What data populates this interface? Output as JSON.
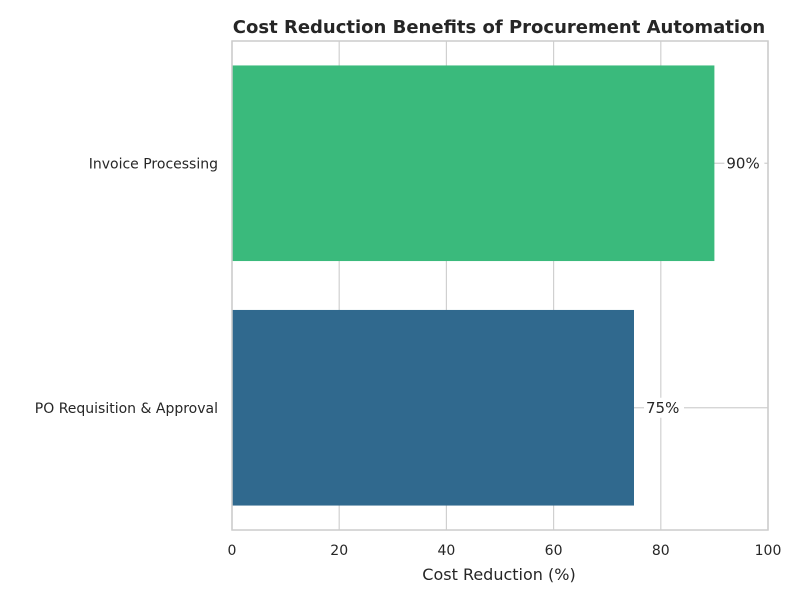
{
  "chart_data": {
    "type": "bar",
    "orientation": "horizontal",
    "title": "Cost Reduction Benefits of Procurement Automation",
    "xlabel": "Cost Reduction (%)",
    "ylabel": "",
    "xlim": [
      0,
      100
    ],
    "xticks": [
      0,
      20,
      40,
      60,
      80,
      100
    ],
    "grid": true,
    "categories": [
      "Invoice Processing",
      "PO Requisition & Approval"
    ],
    "values": [
      90,
      75
    ],
    "data_labels": [
      "90%",
      "75%"
    ],
    "colors": [
      "#3aba7c",
      "#30698e"
    ]
  }
}
